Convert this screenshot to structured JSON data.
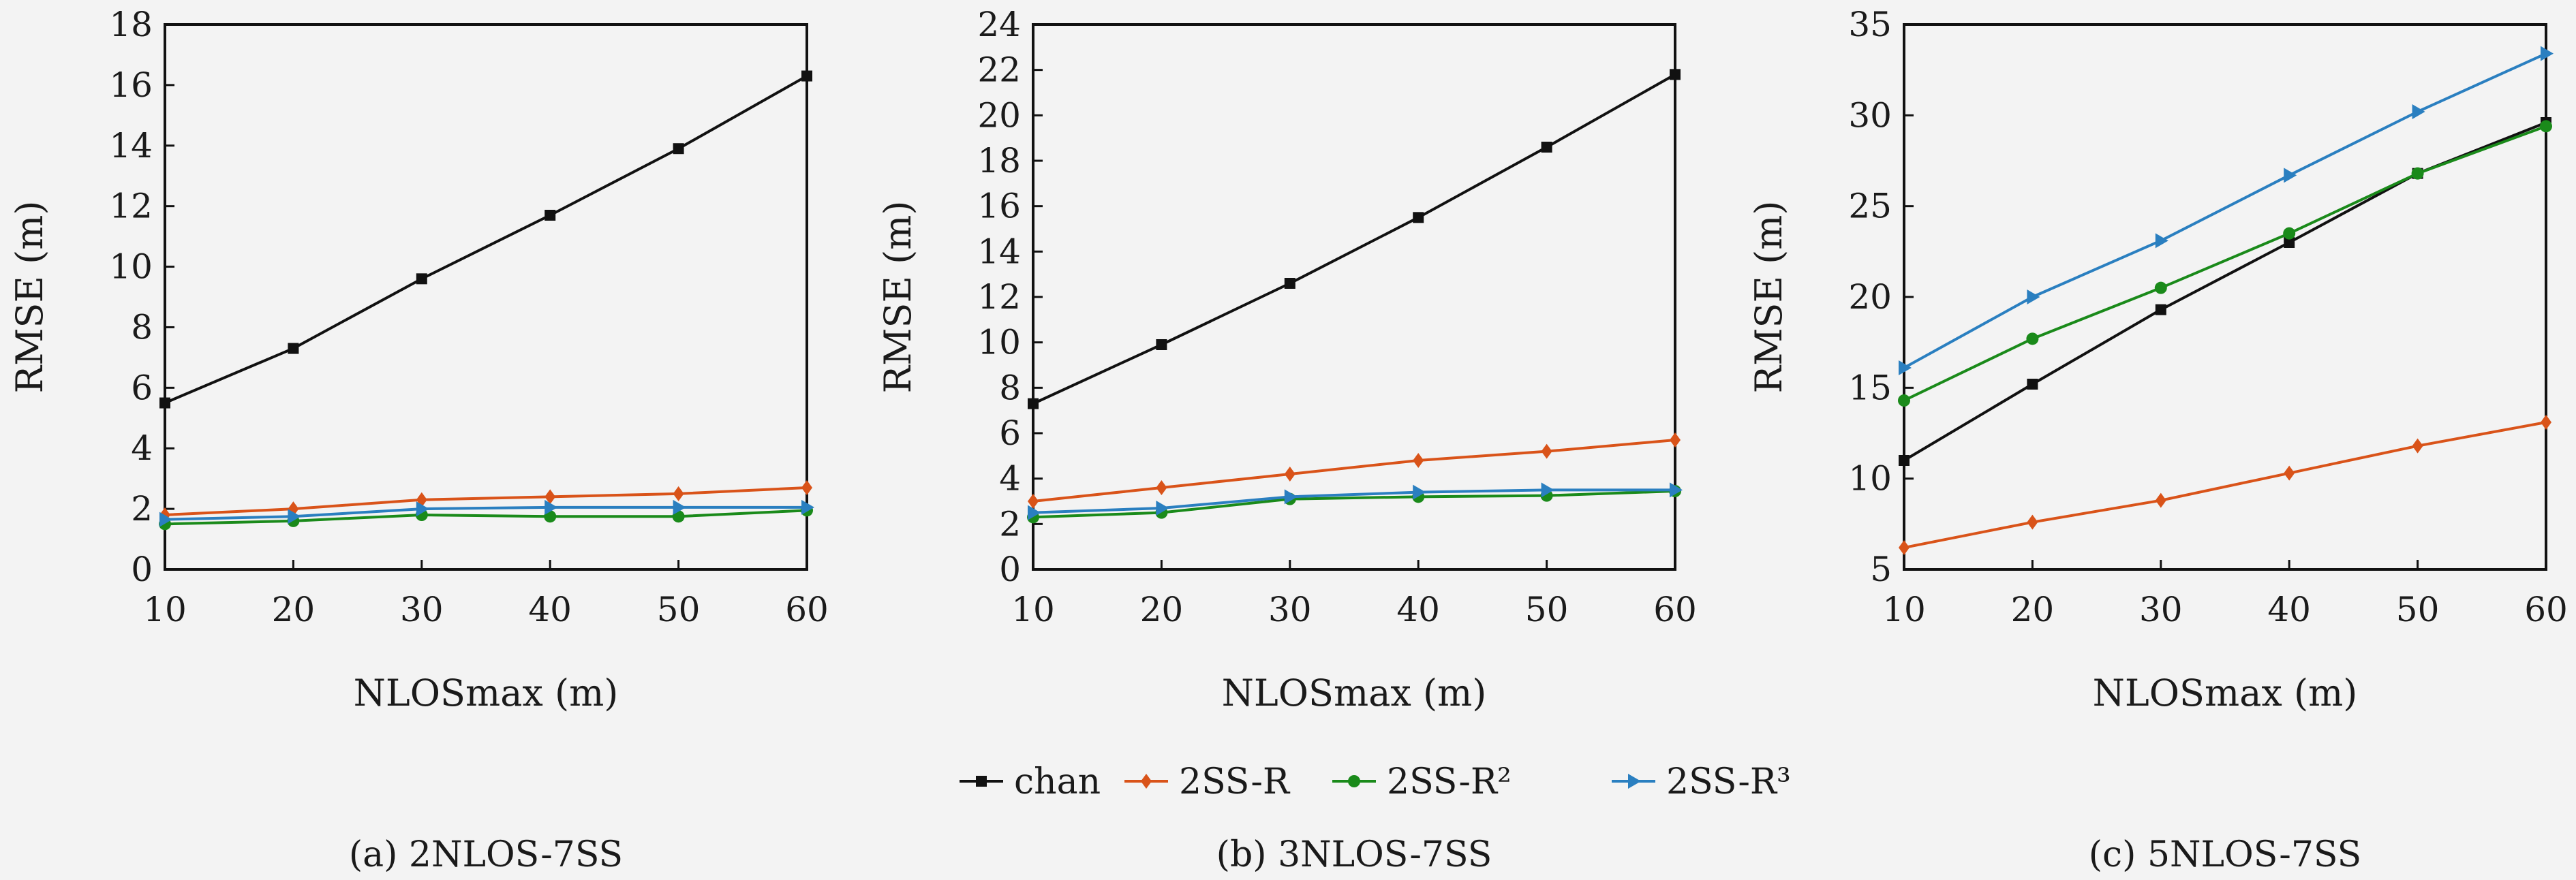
{
  "chart_data": [
    {
      "type": "line",
      "caption": "(a) 2NLOS-7SS",
      "xlabel": "NLOSmax (m)",
      "ylabel": "RMSE (m)",
      "x": [
        10,
        20,
        30,
        40,
        50,
        60
      ],
      "xlim": [
        10,
        60
      ],
      "ylim": [
        0,
        18
      ],
      "yticks": [
        0,
        2,
        4,
        6,
        8,
        10,
        12,
        14,
        16,
        18
      ],
      "series": [
        {
          "name": "chan",
          "color": "#111111",
          "marker": "square",
          "values": [
            5.5,
            7.3,
            9.6,
            11.7,
            13.9,
            16.3
          ]
        },
        {
          "name": "2SS-R",
          "color": "#d95319",
          "marker": "diamond",
          "values": [
            1.8,
            2.0,
            2.3,
            2.4,
            2.5,
            2.7
          ]
        },
        {
          "name": "2SS-R²",
          "color": "#1a8a1a",
          "marker": "circle",
          "values": [
            1.5,
            1.6,
            1.8,
            1.75,
            1.75,
            1.95
          ]
        },
        {
          "name": "2SS-R³",
          "color": "#2a7fc0",
          "marker": "triangle-right",
          "values": [
            1.65,
            1.75,
            2.0,
            2.05,
            2.05,
            2.05
          ]
        }
      ]
    },
    {
      "type": "line",
      "caption": "(b) 3NLOS-7SS",
      "xlabel": "NLOSmax (m)",
      "ylabel": "RMSE (m)",
      "x": [
        10,
        20,
        30,
        40,
        50,
        60
      ],
      "xlim": [
        10,
        60
      ],
      "ylim": [
        0,
        24
      ],
      "yticks": [
        0,
        2,
        4,
        6,
        8,
        10,
        12,
        14,
        16,
        18,
        20,
        22,
        24
      ],
      "series": [
        {
          "name": "chan",
          "color": "#111111",
          "marker": "square",
          "values": [
            7.3,
            9.9,
            12.6,
            15.5,
            18.6,
            21.8
          ]
        },
        {
          "name": "2SS-R",
          "color": "#d95319",
          "marker": "diamond",
          "values": [
            3.0,
            3.6,
            4.2,
            4.8,
            5.2,
            5.7
          ]
        },
        {
          "name": "2SS-R²",
          "color": "#1a8a1a",
          "marker": "circle",
          "values": [
            2.3,
            2.5,
            3.1,
            3.2,
            3.25,
            3.45
          ]
        },
        {
          "name": "2SS-R³",
          "color": "#2a7fc0",
          "marker": "triangle-right",
          "values": [
            2.5,
            2.7,
            3.2,
            3.4,
            3.5,
            3.5
          ]
        }
      ]
    },
    {
      "type": "line",
      "caption": "(c) 5NLOS-7SS",
      "xlabel": "NLOSmax (m)",
      "ylabel": "RMSE (m)",
      "x": [
        10,
        20,
        30,
        40,
        50,
        60
      ],
      "xlim": [
        10,
        60
      ],
      "ylim": [
        5,
        35
      ],
      "yticks": [
        5,
        10,
        15,
        20,
        25,
        30,
        35
      ],
      "series": [
        {
          "name": "chan",
          "color": "#111111",
          "marker": "square",
          "values": [
            11.0,
            15.2,
            19.3,
            23.0,
            26.8,
            29.6
          ]
        },
        {
          "name": "2SS-R",
          "color": "#d95319",
          "marker": "diamond",
          "values": [
            6.2,
            7.6,
            8.8,
            10.3,
            11.8,
            13.1
          ]
        },
        {
          "name": "2SS-R²",
          "color": "#1a8a1a",
          "marker": "circle",
          "values": [
            14.3,
            17.7,
            20.5,
            23.5,
            26.8,
            29.4
          ]
        },
        {
          "name": "2SS-R³",
          "color": "#2a7fc0",
          "marker": "triangle-right",
          "values": [
            16.1,
            20.0,
            23.1,
            26.7,
            30.2,
            33.4
          ]
        }
      ]
    }
  ],
  "legend": {
    "position": "bottom-center",
    "entries": [
      {
        "label": "chan",
        "color": "#111111",
        "marker": "square"
      },
      {
        "label": "2SS-R",
        "color": "#d95319",
        "marker": "diamond"
      },
      {
        "label": "2SS-R²",
        "color": "#1a8a1a",
        "marker": "circle"
      },
      {
        "label": "2SS-R³",
        "color": "#2a7fc0",
        "marker": "triangle-right"
      }
    ]
  }
}
